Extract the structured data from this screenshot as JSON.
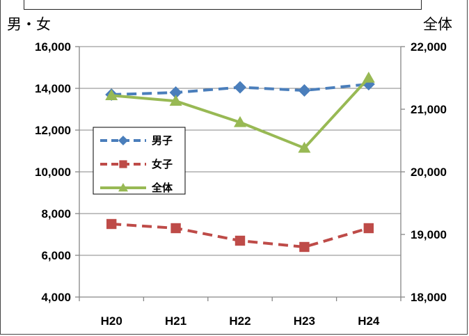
{
  "colors": {
    "male": "#4a7ebb",
    "female": "#be4b48",
    "total": "#98b954",
    "grid": "#868686",
    "axis": "#868686"
  },
  "chart_data": {
    "type": "line",
    "categories": [
      "H20",
      "H21",
      "H22",
      "H23",
      "H24"
    ],
    "left_axis": {
      "unit_label": "男・女",
      "ylim": [
        4000,
        16000
      ],
      "ticks": [
        4000,
        6000,
        8000,
        10000,
        12000,
        14000,
        16000
      ],
      "tick_labels": [
        "4,000",
        "6,000",
        "8,000",
        "10,000",
        "12,000",
        "14,000",
        "16,000"
      ]
    },
    "right_axis": {
      "unit_label": "全体",
      "ylim": [
        18000,
        22000
      ],
      "ticks": [
        18000,
        19000,
        20000,
        21000,
        22000
      ],
      "tick_labels": [
        "18,000",
        "19,000",
        "20,000",
        "21,000",
        "22,000"
      ]
    },
    "grid": true,
    "legend_position": "left-center",
    "series": [
      {
        "name": "男子",
        "axis": "left",
        "values": [
          13700,
          13800,
          14050,
          13900,
          14200
        ],
        "marker": "diamond",
        "dash": true,
        "color_key": "male"
      },
      {
        "name": "女子",
        "axis": "left",
        "values": [
          7500,
          7300,
          6700,
          6400,
          7300
        ],
        "marker": "square",
        "dash": true,
        "color_key": "female"
      },
      {
        "name": "全体",
        "axis": "right",
        "values": [
          21220,
          21130,
          20790,
          20380,
          21500
        ],
        "marker": "triangle",
        "dash": false,
        "color_key": "total"
      }
    ]
  }
}
